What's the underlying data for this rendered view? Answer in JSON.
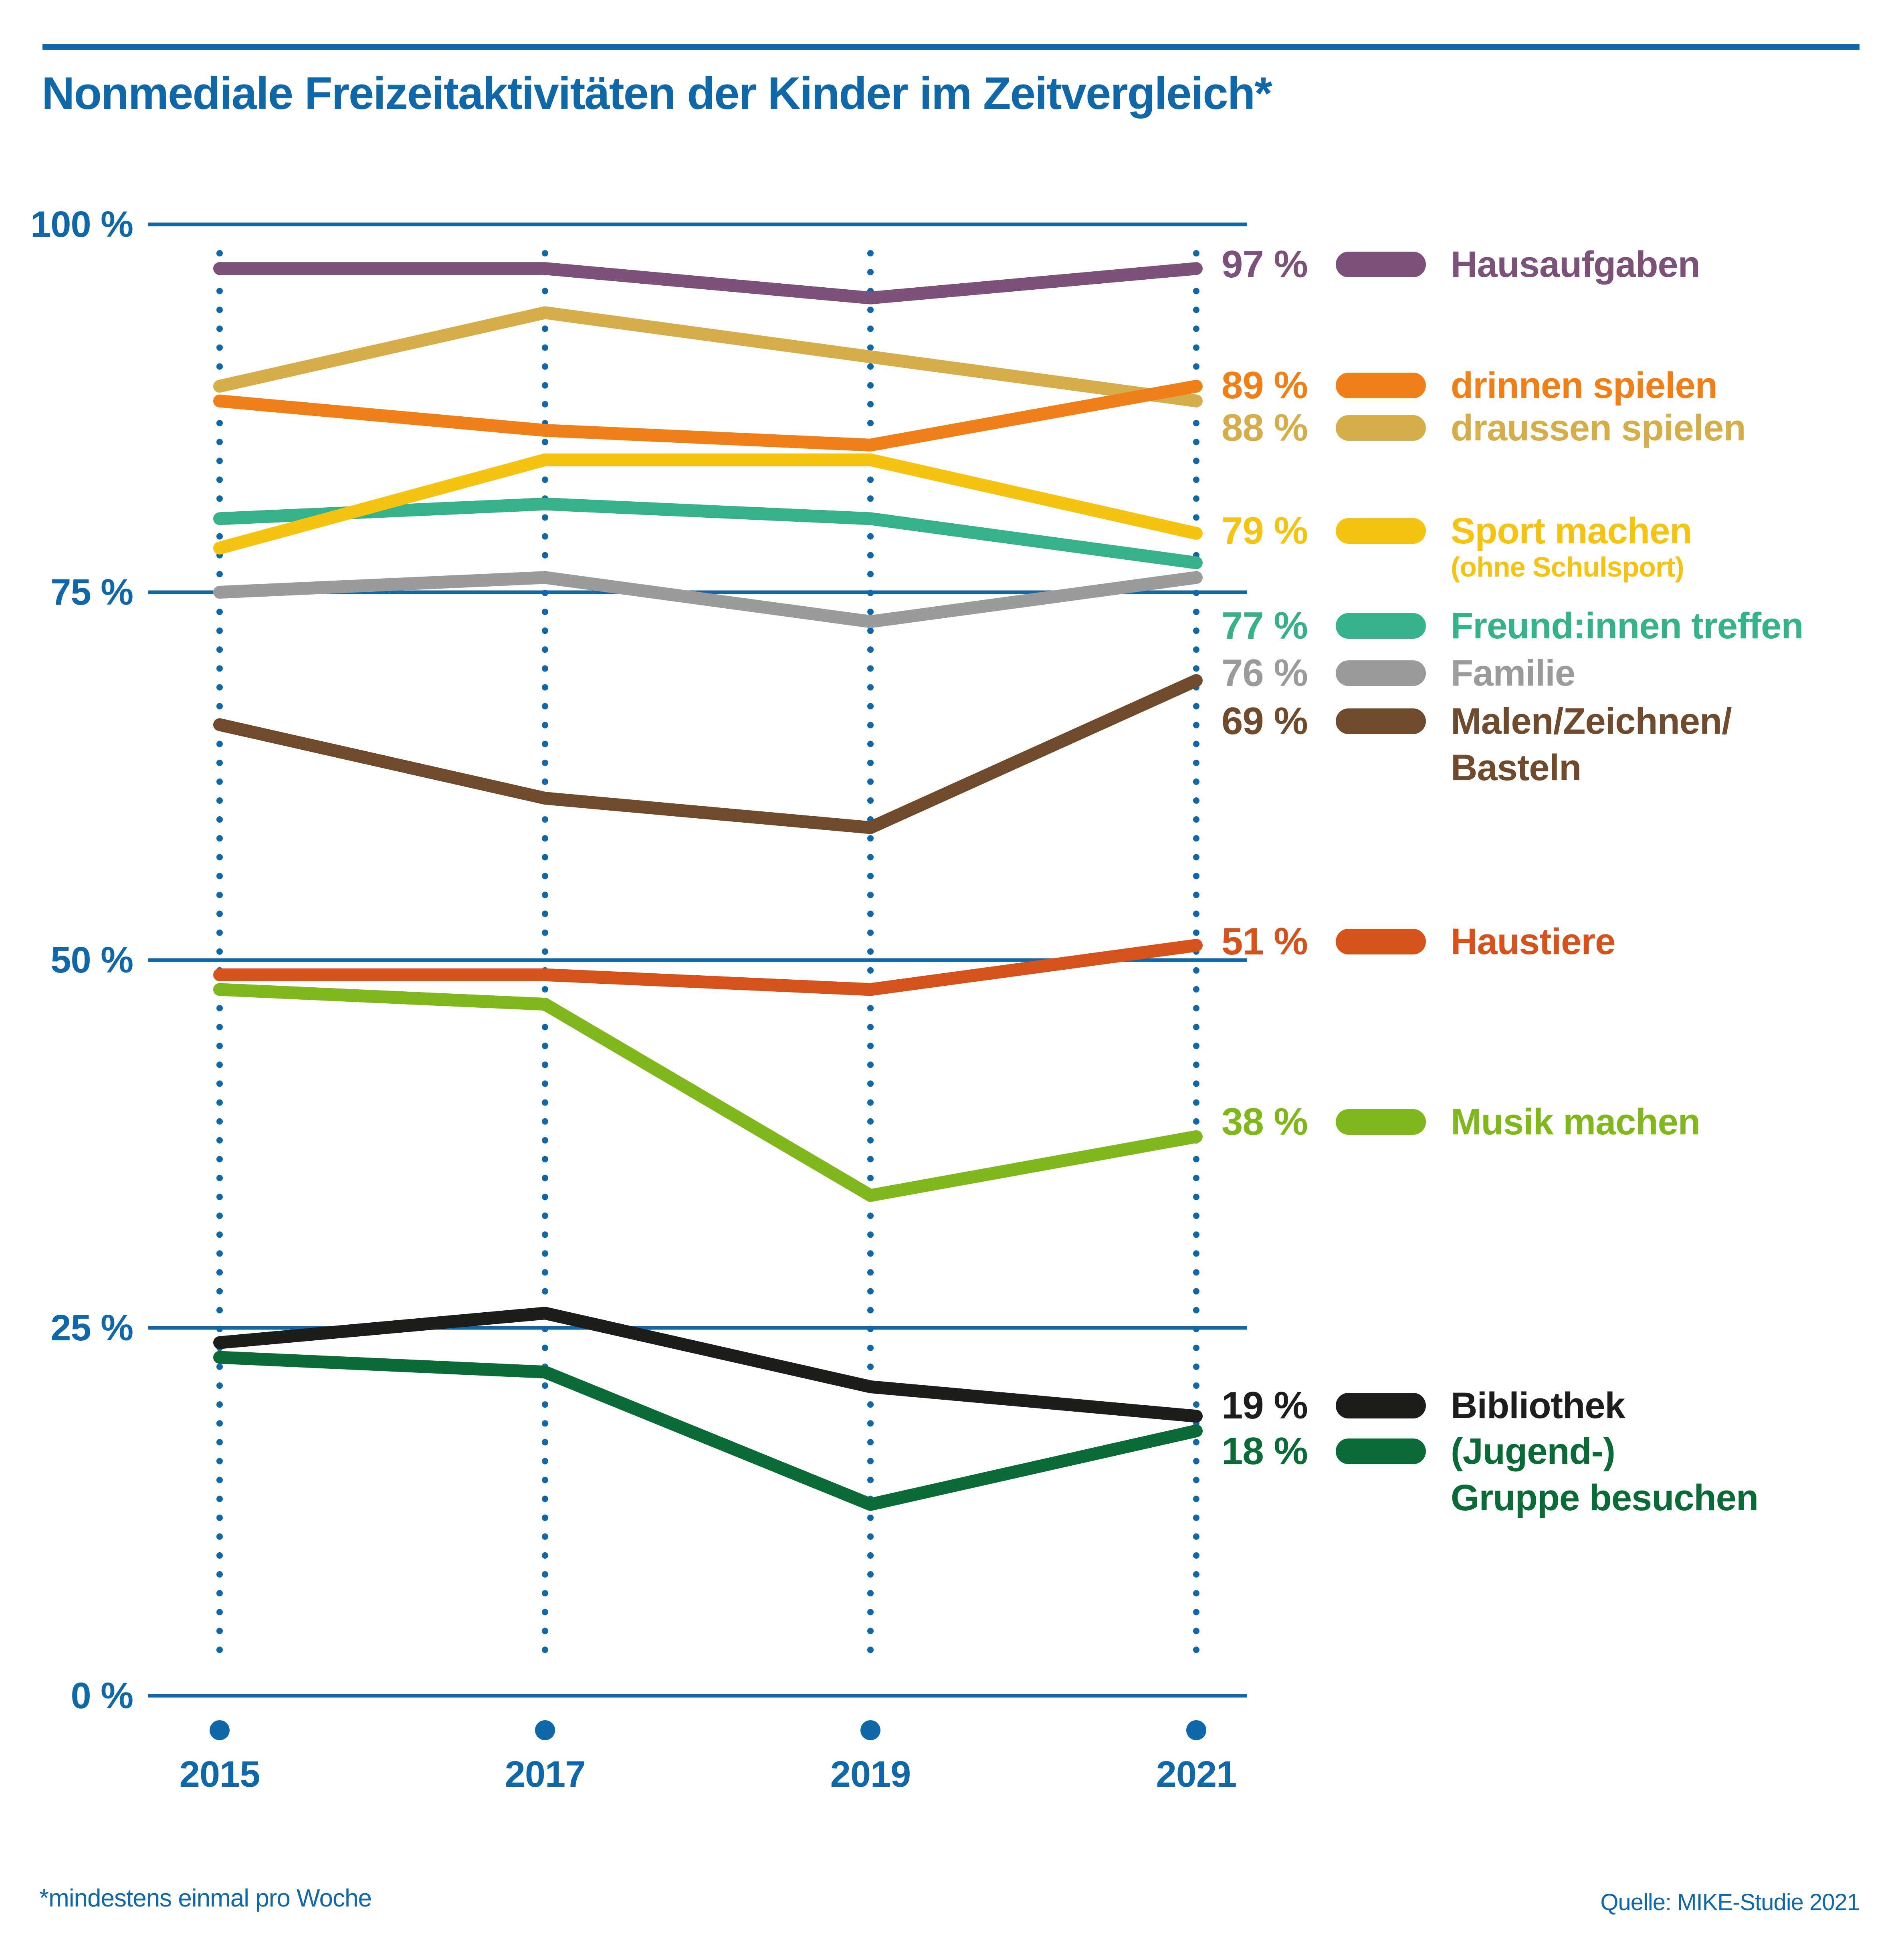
{
  "title": "Nonmediale Freizeitaktivitäten der Kinder im Zeitvergleich*",
  "footnote": "*mindestens einmal pro Woche",
  "source": "Quelle: MIKE-Studie 2021",
  "colors": {
    "axis_blue": "#1168a9",
    "background": "#ffffff"
  },
  "chart_data": {
    "type": "line",
    "title": "Nonmediale Freizeitaktivitäten der Kinder im Zeitvergleich (mindestens einmal pro Woche)",
    "x_labels": [
      "2015",
      "2017",
      "2019",
      "2021"
    ],
    "yticks": [
      "100 %",
      "75 %",
      "50 %",
      "25 %",
      "0 %"
    ],
    "ylim": [
      0,
      100
    ],
    "grid": "horizontal solid lines every 25 %, dotted vertical guide per year",
    "legend_position": "right",
    "series": [
      {
        "name": "Hausaufgaben",
        "color": "#7c517a",
        "values": [
          97,
          97,
          95,
          97
        ],
        "final_label": "97 %",
        "legend_lines": [
          "Hausaufgaben"
        ]
      },
      {
        "name": "drinnen spielen",
        "color": "#ef8019",
        "values": [
          88,
          86,
          85,
          89
        ],
        "final_label": "89 %",
        "legend_lines": [
          "drinnen spielen"
        ]
      },
      {
        "name": "draussen spielen",
        "color": "#d5ad4b",
        "values": [
          89,
          94,
          91,
          88
        ],
        "final_label": "88 %",
        "legend_lines": [
          "draussen spielen"
        ]
      },
      {
        "name": "Sport machen (ohne Schulsport)",
        "color": "#f5c413",
        "values": [
          78,
          84,
          84,
          79
        ],
        "final_label": "79 %",
        "legend_lines": [
          "Sport machen"
        ],
        "legend_sub": "(ohne Schulsport)"
      },
      {
        "name": "Freund:innen treffen",
        "color": "#36b189",
        "values": [
          80,
          81,
          80,
          77
        ],
        "final_label": "77 %",
        "legend_lines": [
          "Freund:innen treffen"
        ]
      },
      {
        "name": "Familie",
        "color": "#9c9b9b",
        "values": [
          75,
          76,
          73,
          76
        ],
        "final_label": "76 %",
        "legend_lines": [
          "Familie"
        ]
      },
      {
        "name": "Malen/Zeichnen/Basteln",
        "color": "#6f4a2d",
        "values": [
          66,
          61,
          59,
          69
        ],
        "final_label": "69 %",
        "legend_lines": [
          "Malen/Zeichnen/",
          "Basteln"
        ]
      },
      {
        "name": "Haustiere",
        "color": "#d6521d",
        "values": [
          49,
          49,
          48,
          51
        ],
        "final_label": "51 %",
        "legend_lines": [
          "Haustiere"
        ]
      },
      {
        "name": "Musik machen",
        "color": "#80b71d",
        "values": [
          48,
          47,
          34,
          38
        ],
        "final_label": "38 %",
        "legend_lines": [
          "Musik machen"
        ]
      },
      {
        "name": "Bibliothek",
        "color": "#1d1d1b",
        "values": [
          24,
          26,
          21,
          19
        ],
        "final_label": "19 %",
        "legend_lines": [
          "Bibliothek"
        ]
      },
      {
        "name": "(Jugend-) Gruppe besuchen",
        "color": "#0a6b36",
        "values": [
          23,
          22,
          13,
          18
        ],
        "final_label": "18 %",
        "legend_lines": [
          "(Jugend-)",
          "Gruppe besuchen"
        ]
      }
    ]
  }
}
